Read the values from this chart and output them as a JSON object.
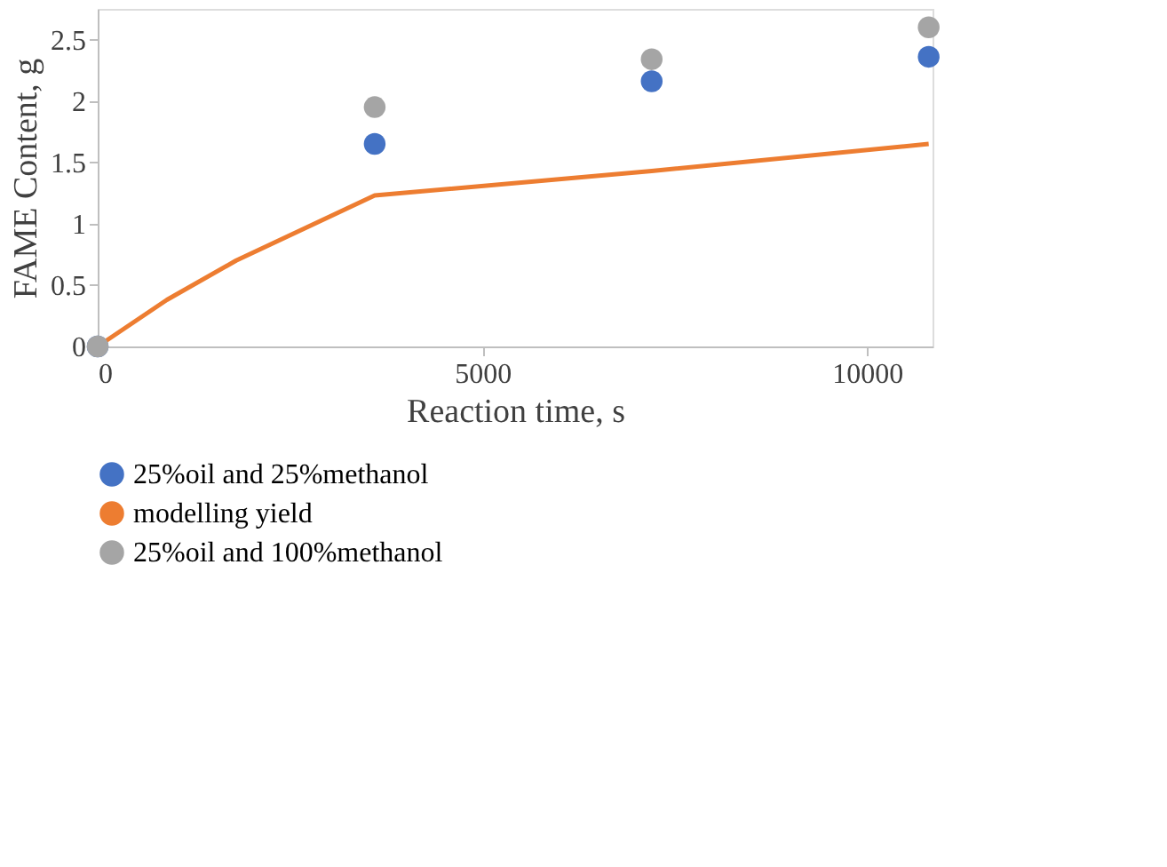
{
  "chart_data": {
    "type": "scatter",
    "xlabel": "Reaction time, s",
    "ylabel": "FAME Content, g",
    "xlim": [
      0,
      10850
    ],
    "xticks": [
      0,
      5000,
      10000
    ],
    "ylim": [
      0,
      2.75
    ],
    "yticks": [
      0,
      0.5,
      1,
      1.5,
      2,
      2.5
    ],
    "grid": false,
    "legend": "bottom",
    "marker": "circle",
    "series": [
      {
        "name": "25%oil and 25%methanol",
        "color": "#4472c4",
        "x": [
          0,
          3600,
          7200,
          10800
        ],
        "values": [
          0,
          1.65,
          2.16,
          2.36
        ]
      },
      {
        "name": "modelling yield",
        "color": "#ed7d31",
        "type": "line",
        "marker": "none",
        "x": [
          0,
          900,
          1800,
          3600,
          7200,
          10800
        ],
        "values": [
          0,
          0.38,
          0.7,
          1.23,
          1.43,
          1.65
        ]
      },
      {
        "name": "25%oil and 100%methanol",
        "color": "#a5a5a5",
        "x": [
          0,
          3600,
          7200,
          10800
        ],
        "values": [
          0,
          1.95,
          2.34,
          2.6
        ]
      }
    ]
  }
}
